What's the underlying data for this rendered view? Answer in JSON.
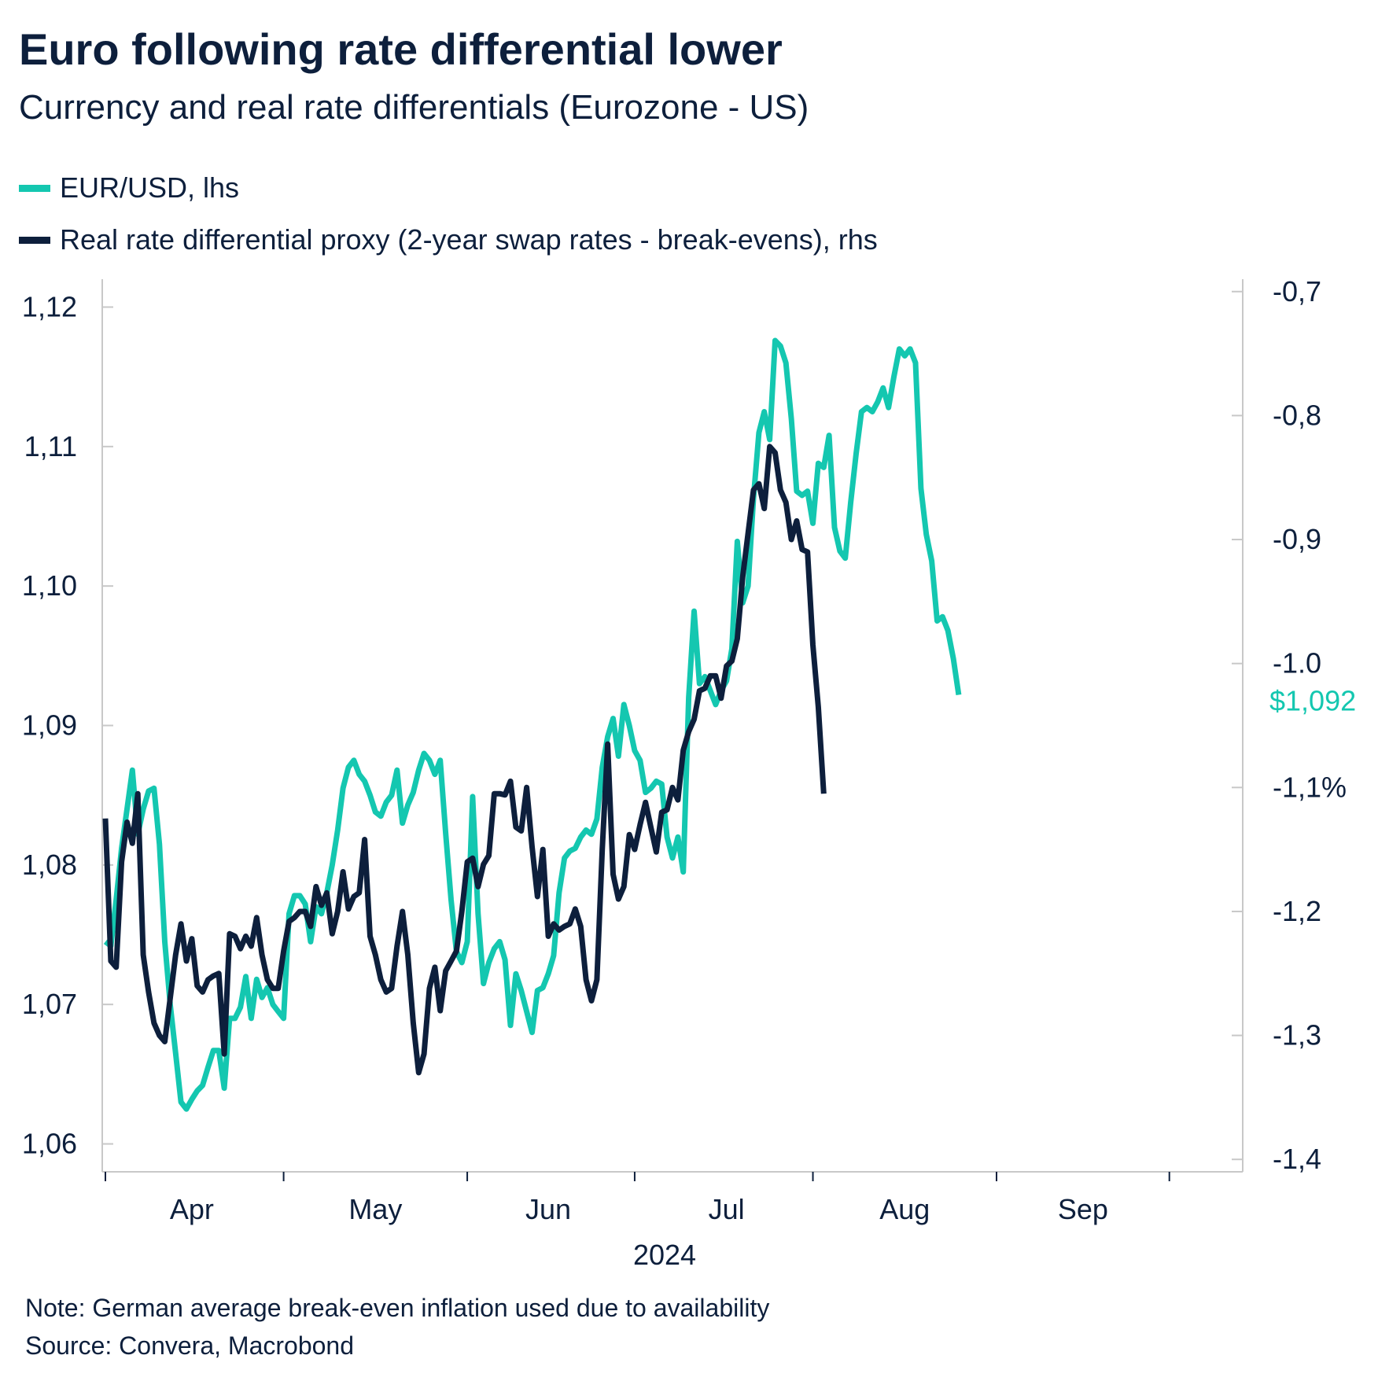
{
  "title": "Euro following rate differential lower",
  "subtitle": "Currency and real rate differentials (Eurozone - US)",
  "note": "Note: German average break-even inflation used due to availability",
  "source": "Source: Convera, Macrobond",
  "colors": {
    "eurusd": "#14c7b0",
    "realrate": "#0d1f3c",
    "axis": "#c8c8c8",
    "text": "#0d1f3c"
  },
  "chart_data": {
    "type": "line",
    "title": "Euro following rate differential lower",
    "subtitle": "Currency and real rate differentials (Eurozone - US)",
    "x_label": "2024",
    "x_range": [
      0,
      210
    ],
    "month_ticks": [
      0,
      33,
      67,
      98,
      131,
      165,
      197
    ],
    "month_labels": [
      {
        "label": "Apr",
        "x": 16
      },
      {
        "label": "May",
        "x": 50
      },
      {
        "label": "Jun",
        "x": 82
      },
      {
        "label": "Jul",
        "x": 115
      },
      {
        "label": "Aug",
        "x": 148
      },
      {
        "label": "Sep",
        "x": 181
      }
    ],
    "y_left": {
      "min": 1.058,
      "max": 1.122,
      "ticks": [
        "1,06",
        "1,07",
        "1,08",
        "1,09",
        "1,10",
        "1,11",
        "1,12"
      ],
      "tick_values": [
        1.06,
        1.07,
        1.08,
        1.09,
        1.1,
        1.11,
        1.12
      ]
    },
    "y_right": {
      "min": -1.41,
      "max": -0.69,
      "ticks": [
        "-0,7",
        "-0,8",
        "-0,9",
        "-1,0",
        "-1,1%",
        "-1,2",
        "-1,3",
        "-1,4"
      ],
      "tick_values": [
        -0.7,
        -0.8,
        -0.9,
        -1.0,
        -1.1,
        -1.2,
        -1.3,
        -1.4
      ]
    },
    "end_label": "$1,092",
    "series": [
      {
        "name": "EUR/USD, lhs",
        "axis": "left",
        "color": "#14c7b0",
        "points": [
          [
            0,
            1.0745
          ],
          [
            1,
            1.0742
          ],
          [
            2,
            1.0775
          ],
          [
            3,
            1.0812
          ],
          [
            4,
            1.084
          ],
          [
            5,
            1.0868
          ],
          [
            6,
            1.0822
          ],
          [
            7,
            1.084
          ],
          [
            8,
            1.0853
          ],
          [
            9,
            1.0855
          ],
          [
            10,
            1.0815
          ],
          [
            11,
            1.0745
          ],
          [
            12,
            1.07
          ],
          [
            13,
            1.0665
          ],
          [
            14,
            1.063
          ],
          [
            15,
            1.0625
          ],
          [
            16,
            1.0632
          ],
          [
            17,
            1.0638
          ],
          [
            18,
            1.0642
          ],
          [
            19,
            1.0655
          ],
          [
            20,
            1.0667
          ],
          [
            21,
            1.0667
          ],
          [
            22,
            1.064
          ],
          [
            23,
            1.069
          ],
          [
            24,
            1.069
          ],
          [
            25,
            1.0698
          ],
          [
            26,
            1.072
          ],
          [
            27,
            1.069
          ],
          [
            28,
            1.0718
          ],
          [
            29,
            1.0705
          ],
          [
            30,
            1.0712
          ],
          [
            31,
            1.07
          ],
          [
            32,
            1.0695
          ],
          [
            33,
            1.069
          ],
          [
            34,
            1.0765
          ],
          [
            35,
            1.0778
          ],
          [
            36,
            1.0778
          ],
          [
            37,
            1.0772
          ],
          [
            38,
            1.0745
          ],
          [
            39,
            1.077
          ],
          [
            40,
            1.0765
          ],
          [
            41,
            1.078
          ],
          [
            42,
            1.08
          ],
          [
            43,
            1.0825
          ],
          [
            44,
            1.0855
          ],
          [
            45,
            1.087
          ],
          [
            46,
            1.0875
          ],
          [
            47,
            1.0865
          ],
          [
            48,
            1.086
          ],
          [
            49,
            1.085
          ],
          [
            50,
            1.0838
          ],
          [
            51,
            1.0835
          ],
          [
            52,
            1.0845
          ],
          [
            53,
            1.085
          ],
          [
            54,
            1.0868
          ],
          [
            55,
            1.083
          ],
          [
            56,
            1.0843
          ],
          [
            57,
            1.0852
          ],
          [
            58,
            1.0868
          ],
          [
            59,
            1.088
          ],
          [
            60,
            1.0875
          ],
          [
            61,
            1.0865
          ],
          [
            62,
            1.0875
          ],
          [
            63,
            1.0823
          ],
          [
            64,
            1.0775
          ],
          [
            65,
            1.0738
          ],
          [
            66,
            1.073
          ],
          [
            67,
            1.0745
          ],
          [
            68,
            1.0849
          ],
          [
            69,
            1.0765
          ],
          [
            70,
            1.0715
          ],
          [
            71,
            1.073
          ],
          [
            72,
            1.074
          ],
          [
            73,
            1.0745
          ],
          [
            74,
            1.0732
          ],
          [
            75,
            1.0685
          ],
          [
            76,
            1.0722
          ],
          [
            77,
            1.071
          ],
          [
            78,
            1.0695
          ],
          [
            79,
            1.068
          ],
          [
            80,
            1.071
          ],
          [
            81,
            1.0712
          ],
          [
            82,
            1.0722
          ],
          [
            83,
            1.0735
          ],
          [
            84,
            1.078
          ],
          [
            85,
            1.0805
          ],
          [
            86,
            1.081
          ],
          [
            87,
            1.0812
          ],
          [
            88,
            1.082
          ],
          [
            89,
            1.0825
          ],
          [
            90,
            1.0822
          ],
          [
            91,
            1.0833
          ],
          [
            92,
            1.087
          ],
          [
            93,
            1.0892
          ],
          [
            94,
            1.0905
          ],
          [
            95,
            1.0878
          ],
          [
            96,
            1.0915
          ],
          [
            97,
            1.09
          ],
          [
            98,
            1.0882
          ],
          [
            99,
            1.0875
          ],
          [
            100,
            1.0852
          ],
          [
            101,
            1.0855
          ],
          [
            102,
            1.086
          ],
          [
            103,
            1.0858
          ],
          [
            104,
            1.082
          ],
          [
            105,
            1.0805
          ],
          [
            106,
            1.082
          ],
          [
            107,
            1.0795
          ],
          [
            108,
            1.092
          ],
          [
            109,
            1.0982
          ],
          [
            110,
            1.093
          ],
          [
            111,
            1.0935
          ],
          [
            112,
            1.0925
          ],
          [
            113,
            1.0915
          ],
          [
            114,
            1.0925
          ],
          [
            115,
            1.0932
          ],
          [
            116,
            1.0955
          ],
          [
            117,
            1.1032
          ],
          [
            118,
            1.0988
          ],
          [
            119,
            1.1
          ],
          [
            120,
            1.1063
          ],
          [
            121,
            1.111
          ],
          [
            122,
            1.1125
          ],
          [
            123,
            1.1105
          ],
          [
            124,
            1.1176
          ],
          [
            125,
            1.1172
          ],
          [
            126,
            1.116
          ],
          [
            127,
            1.112
          ],
          [
            128,
            1.1068
          ],
          [
            129,
            1.1065
          ],
          [
            130,
            1.1068
          ],
          [
            131,
            1.1045
          ],
          [
            132,
            1.1088
          ],
          [
            133,
            1.1085
          ],
          [
            134,
            1.1108
          ],
          [
            135,
            1.1042
          ],
          [
            136,
            1.1025
          ],
          [
            137,
            1.102
          ],
          [
            138,
            1.106
          ],
          [
            139,
            1.1095
          ],
          [
            140,
            1.1125
          ],
          [
            141,
            1.1128
          ],
          [
            142,
            1.1125
          ],
          [
            143,
            1.1132
          ],
          [
            144,
            1.1142
          ],
          [
            145,
            1.1128
          ],
          [
            146,
            1.115
          ],
          [
            147,
            1.117
          ],
          [
            148,
            1.1165
          ],
          [
            149,
            1.117
          ],
          [
            150,
            1.116
          ],
          [
            151,
            1.107
          ],
          [
            152,
            1.1037
          ],
          [
            153,
            1.1018
          ],
          [
            154,
            1.0975
          ],
          [
            155,
            1.0978
          ],
          [
            156,
            1.0968
          ],
          [
            157,
            1.0948
          ],
          [
            158,
            1.0922
          ]
        ]
      },
      {
        "name": "Real rate differential proxy (2-year swap rates - break-evens), rhs",
        "axis": "right",
        "color": "#0d1f3c",
        "points": [
          [
            0,
            -1.125
          ],
          [
            1,
            -1.24
          ],
          [
            2,
            -1.245
          ],
          [
            3,
            -1.16
          ],
          [
            4,
            -1.128
          ],
          [
            5,
            -1.145
          ],
          [
            6,
            -1.105
          ],
          [
            7,
            -1.235
          ],
          [
            8,
            -1.265
          ],
          [
            9,
            -1.29
          ],
          [
            10,
            -1.3
          ],
          [
            11,
            -1.305
          ],
          [
            12,
            -1.27
          ],
          [
            13,
            -1.235
          ],
          [
            14,
            -1.21
          ],
          [
            15,
            -1.24
          ],
          [
            16,
            -1.222
          ],
          [
            17,
            -1.26
          ],
          [
            18,
            -1.265
          ],
          [
            19,
            -1.255
          ],
          [
            20,
            -1.252
          ],
          [
            21,
            -1.25
          ],
          [
            22,
            -1.315
          ],
          [
            23,
            -1.218
          ],
          [
            24,
            -1.22
          ],
          [
            25,
            -1.23
          ],
          [
            26,
            -1.22
          ],
          [
            27,
            -1.228
          ],
          [
            28,
            -1.205
          ],
          [
            29,
            -1.235
          ],
          [
            30,
            -1.255
          ],
          [
            31,
            -1.262
          ],
          [
            32,
            -1.262
          ],
          [
            33,
            -1.232
          ],
          [
            34,
            -1.208
          ],
          [
            35,
            -1.205
          ],
          [
            36,
            -1.2
          ],
          [
            37,
            -1.2
          ],
          [
            38,
            -1.212
          ],
          [
            39,
            -1.18
          ],
          [
            40,
            -1.195
          ],
          [
            41,
            -1.185
          ],
          [
            42,
            -1.218
          ],
          [
            43,
            -1.2
          ],
          [
            44,
            -1.168
          ],
          [
            45,
            -1.198
          ],
          [
            46,
            -1.188
          ],
          [
            47,
            -1.185
          ],
          [
            48,
            -1.142
          ],
          [
            49,
            -1.22
          ],
          [
            50,
            -1.235
          ],
          [
            51,
            -1.255
          ],
          [
            52,
            -1.265
          ],
          [
            53,
            -1.262
          ],
          [
            54,
            -1.228
          ],
          [
            55,
            -1.2
          ],
          [
            56,
            -1.235
          ],
          [
            57,
            -1.29
          ],
          [
            58,
            -1.33
          ],
          [
            59,
            -1.315
          ],
          [
            60,
            -1.262
          ],
          [
            61,
            -1.245
          ],
          [
            62,
            -1.28
          ],
          [
            63,
            -1.248
          ],
          [
            64,
            -1.24
          ],
          [
            65,
            -1.232
          ],
          [
            66,
            -1.2
          ],
          [
            67,
            -1.16
          ],
          [
            68,
            -1.157
          ],
          [
            69,
            -1.18
          ],
          [
            70,
            -1.162
          ],
          [
            71,
            -1.155
          ],
          [
            72,
            -1.105
          ],
          [
            73,
            -1.105
          ],
          [
            74,
            -1.106
          ],
          [
            75,
            -1.095
          ],
          [
            76,
            -1.132
          ],
          [
            77,
            -1.135
          ],
          [
            78,
            -1.1
          ],
          [
            79,
            -1.148
          ],
          [
            80,
            -1.188
          ],
          [
            81,
            -1.15
          ],
          [
            82,
            -1.22
          ],
          [
            83,
            -1.21
          ],
          [
            84,
            -1.215
          ],
          [
            85,
            -1.212
          ],
          [
            86,
            -1.21
          ],
          [
            87,
            -1.198
          ],
          [
            88,
            -1.212
          ],
          [
            89,
            -1.255
          ],
          [
            90,
            -1.272
          ],
          [
            91,
            -1.255
          ],
          [
            92,
            -1.15
          ],
          [
            93,
            -1.065
          ],
          [
            94,
            -1.17
          ],
          [
            95,
            -1.19
          ],
          [
            96,
            -1.18
          ],
          [
            97,
            -1.138
          ],
          [
            98,
            -1.15
          ],
          [
            99,
            -1.13
          ],
          [
            100,
            -1.112
          ],
          [
            101,
            -1.132
          ],
          [
            102,
            -1.152
          ],
          [
            103,
            -1.12
          ],
          [
            104,
            -1.118
          ],
          [
            105,
            -1.1
          ],
          [
            106,
            -1.11
          ],
          [
            107,
            -1.07
          ],
          [
            108,
            -1.055
          ],
          [
            109,
            -1.045
          ],
          [
            110,
            -1.022
          ],
          [
            111,
            -1.02
          ],
          [
            112,
            -1.01
          ],
          [
            113,
            -1.01
          ],
          [
            114,
            -1.028
          ],
          [
            115,
            -1.002
          ],
          [
            116,
            -0.998
          ],
          [
            117,
            -0.98
          ],
          [
            118,
            -0.93
          ],
          [
            119,
            -0.895
          ],
          [
            120,
            -0.86
          ],
          [
            121,
            -0.855
          ],
          [
            122,
            -0.875
          ],
          [
            123,
            -0.825
          ],
          [
            124,
            -0.83
          ],
          [
            125,
            -0.86
          ],
          [
            126,
            -0.87
          ],
          [
            127,
            -0.9
          ],
          [
            128,
            -0.885
          ],
          [
            129,
            -0.908
          ],
          [
            130,
            -0.91
          ],
          [
            131,
            -0.985
          ],
          [
            132,
            -1.035
          ],
          [
            133,
            -1.105
          ]
        ]
      }
    ]
  }
}
